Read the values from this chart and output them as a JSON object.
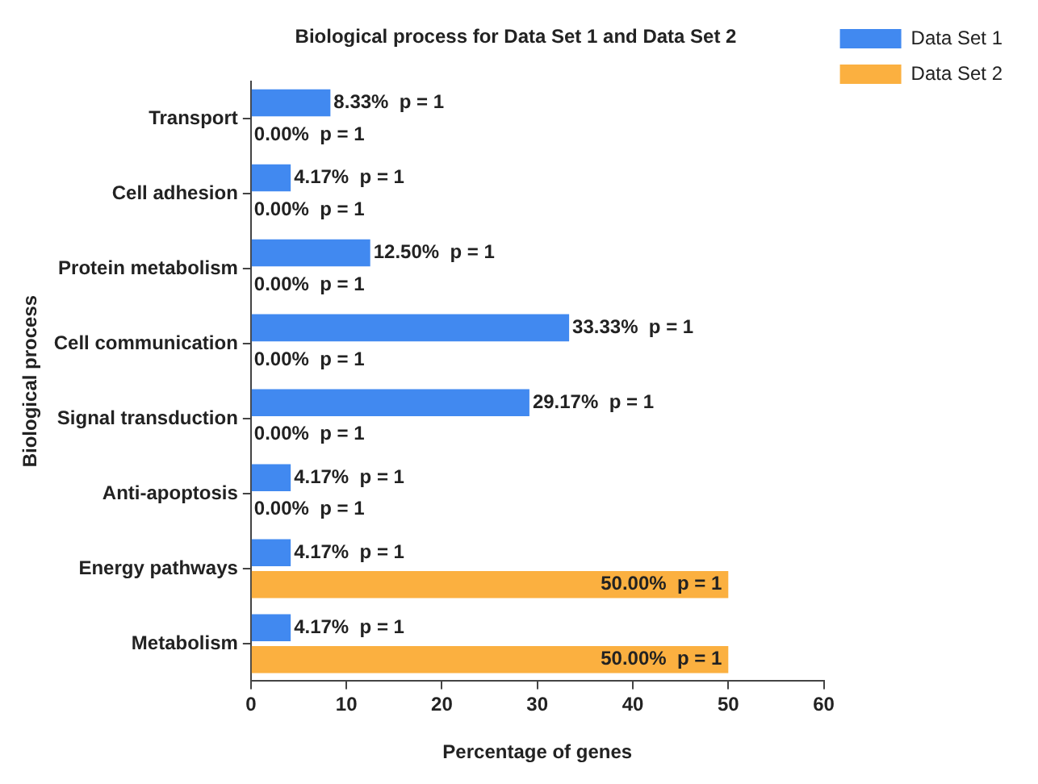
{
  "chart_data": {
    "type": "bar",
    "orientation": "horizontal",
    "title": "Biological process for Data Set 1 and Data Set 2",
    "xlabel": "Percentage of genes",
    "ylabel": "Biological process",
    "categories": [
      "Transport",
      "Cell adhesion",
      "Protein metabolism",
      "Cell communication",
      "Signal transduction",
      "Anti-apoptosis",
      "Energy pathways",
      "Metabolism"
    ],
    "series": [
      {
        "name": "Data Set 1",
        "color": "#4189f0",
        "values": [
          8.33,
          4.17,
          12.5,
          33.33,
          29.17,
          4.17,
          4.17,
          4.17
        ],
        "value_labels": [
          "8.33%  p = 1",
          "4.17%  p = 1",
          "12.50%  p = 1",
          "33.33%  p = 1",
          "29.17%  p = 1",
          "4.17%  p = 1",
          "4.17%  p = 1",
          "4.17%  p = 1"
        ]
      },
      {
        "name": "Data Set 2",
        "color": "#fbb040",
        "values": [
          0,
          0,
          0,
          0,
          0,
          0,
          50,
          50
        ],
        "value_labels": [
          "0.00%  p = 1",
          "0.00%  p = 1",
          "0.00%  p = 1",
          "0.00%  p = 1",
          "0.00%  p = 1",
          "0.00%  p = 1",
          "50.00%  p = 1",
          "50.00%  p = 1"
        ]
      }
    ],
    "xlim": [
      0,
      60
    ],
    "xticks": [
      0,
      10,
      20,
      30,
      40,
      50,
      60
    ],
    "grid": false,
    "legend": "top right"
  }
}
